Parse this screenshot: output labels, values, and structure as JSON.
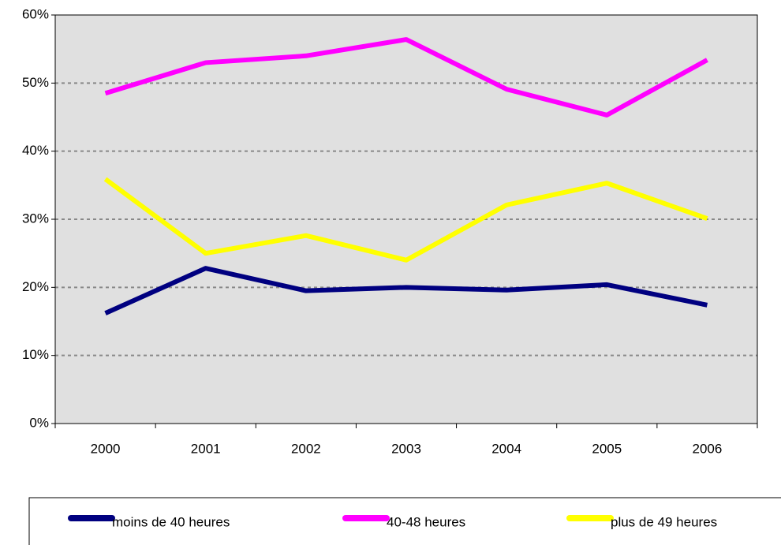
{
  "chart_data": {
    "type": "line",
    "categories": [
      "2000",
      "2001",
      "2002",
      "2003",
      "2004",
      "2005",
      "2006"
    ],
    "series": [
      {
        "name": "moins de 40 heures",
        "color": "#000080",
        "values": [
          16.2,
          22.8,
          19.5,
          20.0,
          19.6,
          20.4,
          17.4
        ]
      },
      {
        "name": "40-48 heures",
        "color": "#ff00ff",
        "values": [
          48.5,
          53.0,
          54.0,
          56.4,
          49.1,
          45.3,
          53.4
        ]
      },
      {
        "name": "plus de 49 heures",
        "color": "#ffff00",
        "values": [
          35.9,
          25.0,
          27.6,
          24.0,
          32.1,
          35.3,
          30.1
        ]
      }
    ],
    "ylim": [
      0,
      60
    ],
    "yticks": [
      {
        "value": 0,
        "label": "0%"
      },
      {
        "value": 10,
        "label": "10%"
      },
      {
        "value": 20,
        "label": "20%"
      },
      {
        "value": 30,
        "label": "30%"
      },
      {
        "value": 40,
        "label": "40%"
      },
      {
        "value": 50,
        "label": "50%"
      },
      {
        "value": 60,
        "label": "60%"
      }
    ],
    "grid": true
  }
}
